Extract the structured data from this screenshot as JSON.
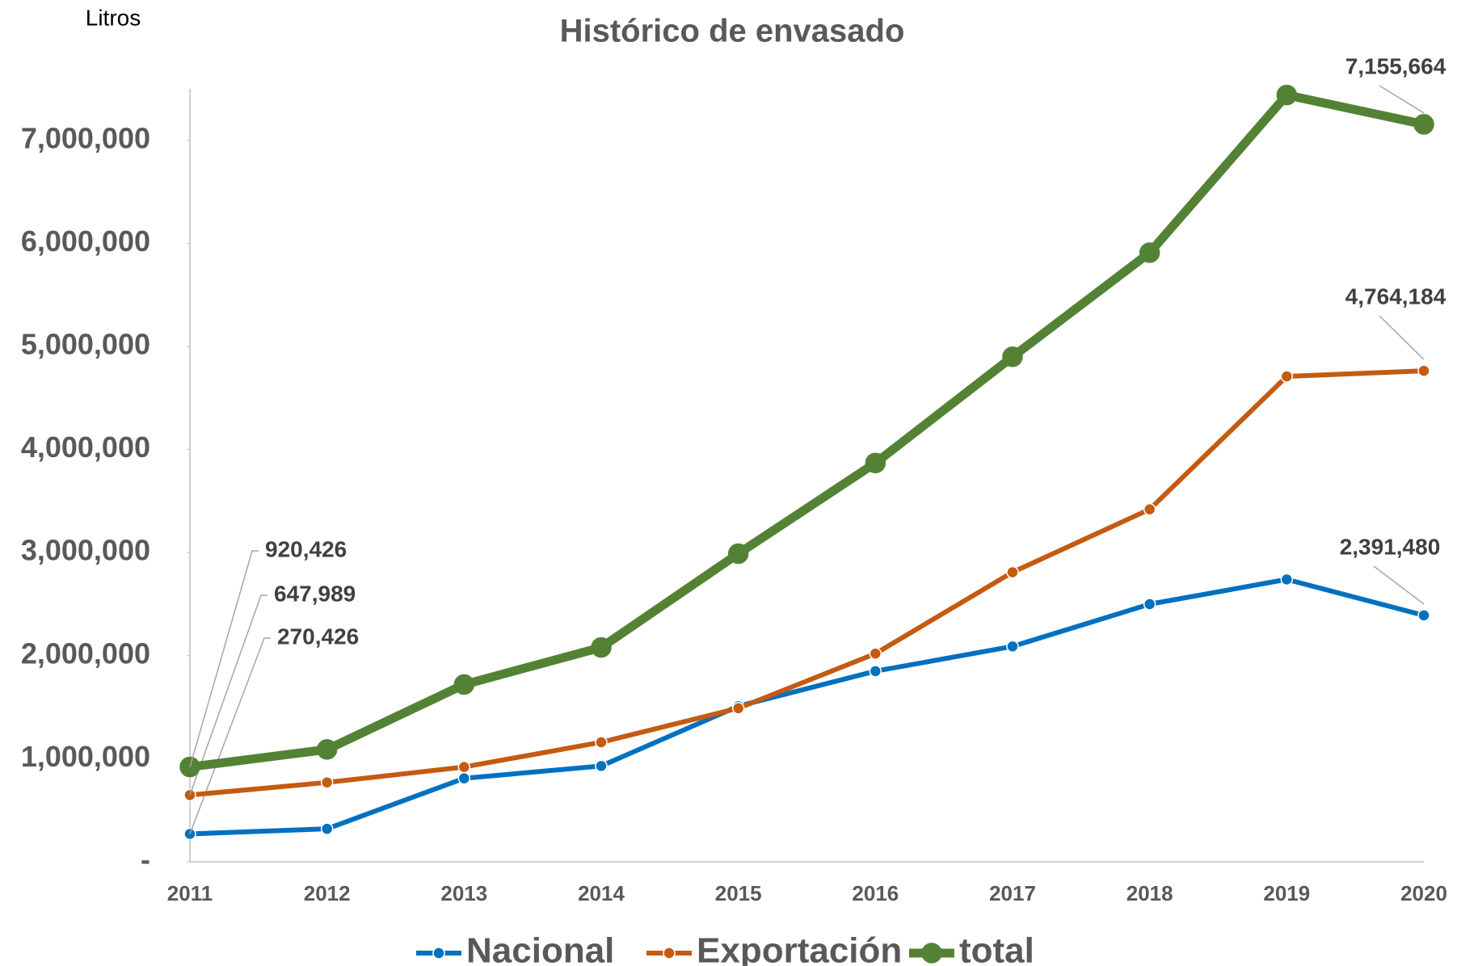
{
  "chart_data": {
    "type": "line",
    "title": "Histórico de envasado",
    "ylabel": "Litros",
    "categories": [
      "2011",
      "2012",
      "2013",
      "2014",
      "2015",
      "2016",
      "2017",
      "2018",
      "2019",
      "2020"
    ],
    "series": [
      {
        "name": "Nacional",
        "color": "#0070c0",
        "values": [
          270426,
          320000,
          810000,
          930000,
          1510000,
          1850000,
          2090000,
          2500000,
          2740000,
          2391480
        ],
        "value_labels": [
          "270,426",
          null,
          null,
          null,
          null,
          null,
          null,
          null,
          null,
          "2,391,480"
        ]
      },
      {
        "name": "Exportación",
        "color": "#c55a11",
        "values": [
          647989,
          770000,
          920000,
          1160000,
          1490000,
          2020000,
          2810000,
          3420000,
          4710000,
          4764184
        ],
        "value_labels": [
          "647,989",
          null,
          null,
          null,
          null,
          null,
          null,
          null,
          null,
          "4,764,184"
        ]
      },
      {
        "name": "total",
        "color": "#548235",
        "values": [
          920426,
          1090000,
          1720000,
          2080000,
          2990000,
          3870000,
          4900000,
          5910000,
          7440000,
          7155664
        ],
        "value_labels": [
          "920,426",
          null,
          null,
          null,
          null,
          null,
          null,
          null,
          null,
          "7,155,664"
        ]
      }
    ],
    "ylim": [
      0,
      7500000
    ],
    "yticks": [
      {
        "value": 0,
        "label": "-"
      },
      {
        "value": 1000000,
        "label": "1,000,000"
      },
      {
        "value": 2000000,
        "label": "2,000,000"
      },
      {
        "value": 3000000,
        "label": "3,000,000"
      },
      {
        "value": 4000000,
        "label": "4,000,000"
      },
      {
        "value": 5000000,
        "label": "5,000,000"
      },
      {
        "value": 6000000,
        "label": "6,000,000"
      },
      {
        "value": 7000000,
        "label": "7,000,000"
      }
    ],
    "legend": "bottom"
  }
}
